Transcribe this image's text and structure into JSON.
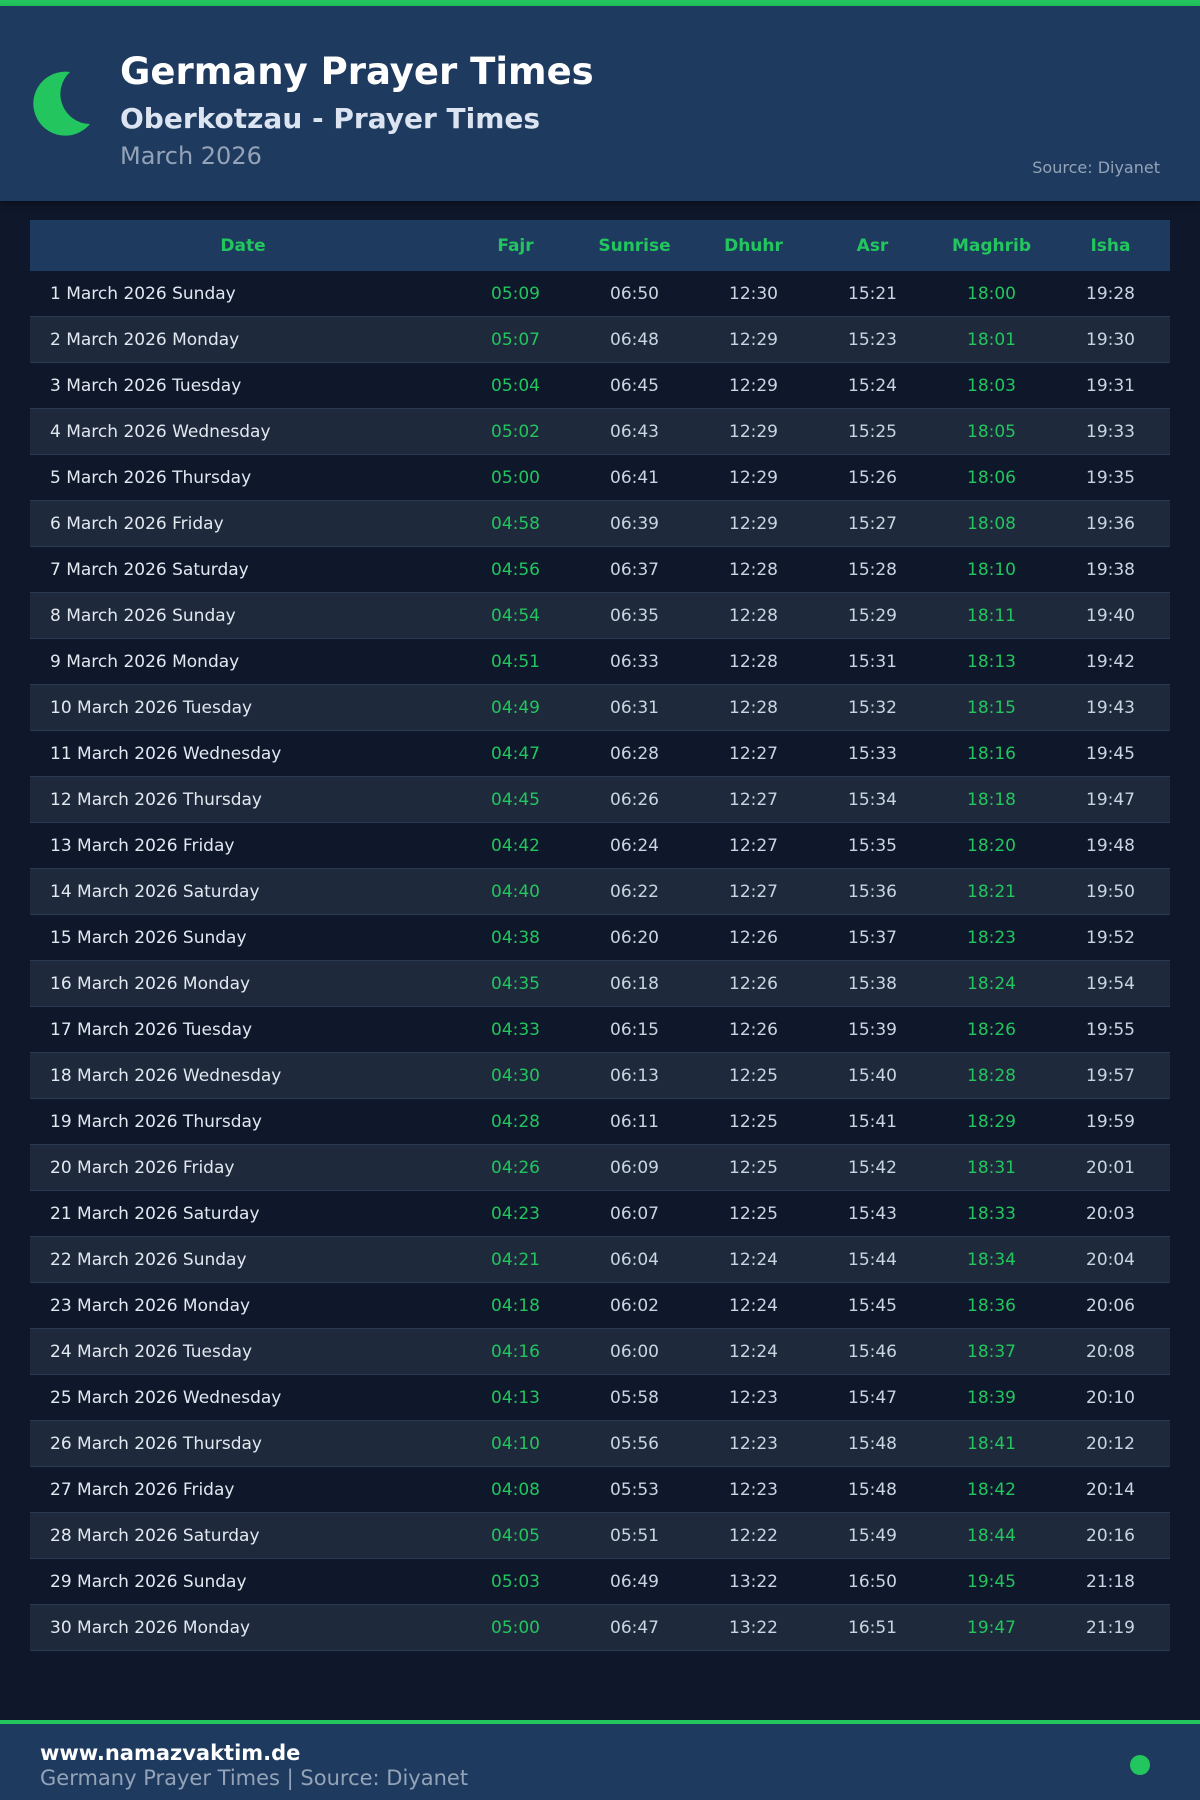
{
  "header": {
    "title": "Germany Prayer Times",
    "subtitle": "Oberkotzau - Prayer Times",
    "month": "March 2026",
    "source": "Source: Diyanet",
    "icon": "crescent-moon-icon"
  },
  "colors": {
    "accent": "#22c55e",
    "header_bg": "#1e3a5f",
    "page_bg": "#0f172a",
    "alt_row": "#1e293b"
  },
  "table": {
    "columns": [
      "Date",
      "Fajr",
      "Sunrise",
      "Dhuhr",
      "Asr",
      "Maghrib",
      "Isha"
    ],
    "rows": [
      [
        "1 March 2026 Sunday",
        "05:09",
        "06:50",
        "12:30",
        "15:21",
        "18:00",
        "19:28"
      ],
      [
        "2 March 2026 Monday",
        "05:07",
        "06:48",
        "12:29",
        "15:23",
        "18:01",
        "19:30"
      ],
      [
        "3 March 2026 Tuesday",
        "05:04",
        "06:45",
        "12:29",
        "15:24",
        "18:03",
        "19:31"
      ],
      [
        "4 March 2026 Wednesday",
        "05:02",
        "06:43",
        "12:29",
        "15:25",
        "18:05",
        "19:33"
      ],
      [
        "5 March 2026 Thursday",
        "05:00",
        "06:41",
        "12:29",
        "15:26",
        "18:06",
        "19:35"
      ],
      [
        "6 March 2026 Friday",
        "04:58",
        "06:39",
        "12:29",
        "15:27",
        "18:08",
        "19:36"
      ],
      [
        "7 March 2026 Saturday",
        "04:56",
        "06:37",
        "12:28",
        "15:28",
        "18:10",
        "19:38"
      ],
      [
        "8 March 2026 Sunday",
        "04:54",
        "06:35",
        "12:28",
        "15:29",
        "18:11",
        "19:40"
      ],
      [
        "9 March 2026 Monday",
        "04:51",
        "06:33",
        "12:28",
        "15:31",
        "18:13",
        "19:42"
      ],
      [
        "10 March 2026 Tuesday",
        "04:49",
        "06:31",
        "12:28",
        "15:32",
        "18:15",
        "19:43"
      ],
      [
        "11 March 2026 Wednesday",
        "04:47",
        "06:28",
        "12:27",
        "15:33",
        "18:16",
        "19:45"
      ],
      [
        "12 March 2026 Thursday",
        "04:45",
        "06:26",
        "12:27",
        "15:34",
        "18:18",
        "19:47"
      ],
      [
        "13 March 2026 Friday",
        "04:42",
        "06:24",
        "12:27",
        "15:35",
        "18:20",
        "19:48"
      ],
      [
        "14 March 2026 Saturday",
        "04:40",
        "06:22",
        "12:27",
        "15:36",
        "18:21",
        "19:50"
      ],
      [
        "15 March 2026 Sunday",
        "04:38",
        "06:20",
        "12:26",
        "15:37",
        "18:23",
        "19:52"
      ],
      [
        "16 March 2026 Monday",
        "04:35",
        "06:18",
        "12:26",
        "15:38",
        "18:24",
        "19:54"
      ],
      [
        "17 March 2026 Tuesday",
        "04:33",
        "06:15",
        "12:26",
        "15:39",
        "18:26",
        "19:55"
      ],
      [
        "18 March 2026 Wednesday",
        "04:30",
        "06:13",
        "12:25",
        "15:40",
        "18:28",
        "19:57"
      ],
      [
        "19 March 2026 Thursday",
        "04:28",
        "06:11",
        "12:25",
        "15:41",
        "18:29",
        "19:59"
      ],
      [
        "20 March 2026 Friday",
        "04:26",
        "06:09",
        "12:25",
        "15:42",
        "18:31",
        "20:01"
      ],
      [
        "21 March 2026 Saturday",
        "04:23",
        "06:07",
        "12:25",
        "15:43",
        "18:33",
        "20:03"
      ],
      [
        "22 March 2026 Sunday",
        "04:21",
        "06:04",
        "12:24",
        "15:44",
        "18:34",
        "20:04"
      ],
      [
        "23 March 2026 Monday",
        "04:18",
        "06:02",
        "12:24",
        "15:45",
        "18:36",
        "20:06"
      ],
      [
        "24 March 2026 Tuesday",
        "04:16",
        "06:00",
        "12:24",
        "15:46",
        "18:37",
        "20:08"
      ],
      [
        "25 March 2026 Wednesday",
        "04:13",
        "05:58",
        "12:23",
        "15:47",
        "18:39",
        "20:10"
      ],
      [
        "26 March 2026 Thursday",
        "04:10",
        "05:56",
        "12:23",
        "15:48",
        "18:41",
        "20:12"
      ],
      [
        "27 March 2026 Friday",
        "04:08",
        "05:53",
        "12:23",
        "15:48",
        "18:42",
        "20:14"
      ],
      [
        "28 March 2026 Saturday",
        "04:05",
        "05:51",
        "12:22",
        "15:49",
        "18:44",
        "20:16"
      ],
      [
        "29 March 2026 Sunday",
        "05:03",
        "06:49",
        "13:22",
        "16:50",
        "19:45",
        "21:18"
      ],
      [
        "30 March 2026 Monday",
        "05:00",
        "06:47",
        "13:22",
        "16:51",
        "19:47",
        "21:19"
      ]
    ]
  },
  "footer": {
    "website": "www.namazvaktim.de",
    "tagline": "Germany Prayer Times | Source: Diyanet"
  }
}
